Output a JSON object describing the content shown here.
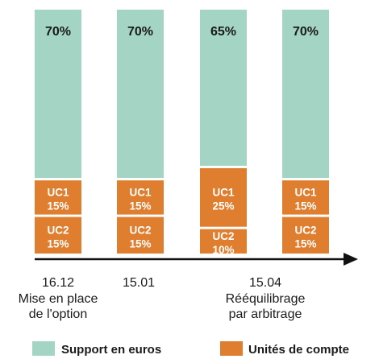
{
  "colors": {
    "support": "#a3d4c4",
    "uc": "#e07e2f",
    "axis": "#111111"
  },
  "chart_data": {
    "type": "bar",
    "stacked": true,
    "categories": [
      "16.12",
      "15.01",
      "15.04",
      ""
    ],
    "category_notes": [
      "Mise en place\nde l'option",
      "",
      "Rééquilibrage\npar arbitrage",
      ""
    ],
    "segments_bottom_to_top": [
      "UC2",
      "UC1",
      "Support en euros"
    ],
    "bars": [
      {
        "support": 70,
        "uc1": 15,
        "uc2": 15,
        "support_label": "70%",
        "uc1_label": "UC1",
        "uc1_value": "15%",
        "uc2_label": "UC2",
        "uc2_value": "15%"
      },
      {
        "support": 70,
        "uc1": 15,
        "uc2": 15,
        "support_label": "70%",
        "uc1_label": "UC1",
        "uc1_value": "15%",
        "uc2_label": "UC2",
        "uc2_value": "15%"
      },
      {
        "support": 65,
        "uc1": 25,
        "uc2": 10,
        "support_label": "65%",
        "uc1_label": "UC1",
        "uc1_value": "25%",
        "uc2_label": "UC2",
        "uc2_value": "10%"
      },
      {
        "support": 70,
        "uc1": 15,
        "uc2": 15,
        "support_label": "70%",
        "uc1_label": "UC1",
        "uc1_value": "15%",
        "uc2_label": "UC2",
        "uc2_value": "15%"
      }
    ],
    "ylim": [
      0,
      100
    ],
    "grid": false,
    "legend_position": "bottom",
    "legend": [
      {
        "name": "Support en euros",
        "color_key": "support"
      },
      {
        "name": "Unités de compte",
        "color_key": "uc"
      }
    ]
  }
}
